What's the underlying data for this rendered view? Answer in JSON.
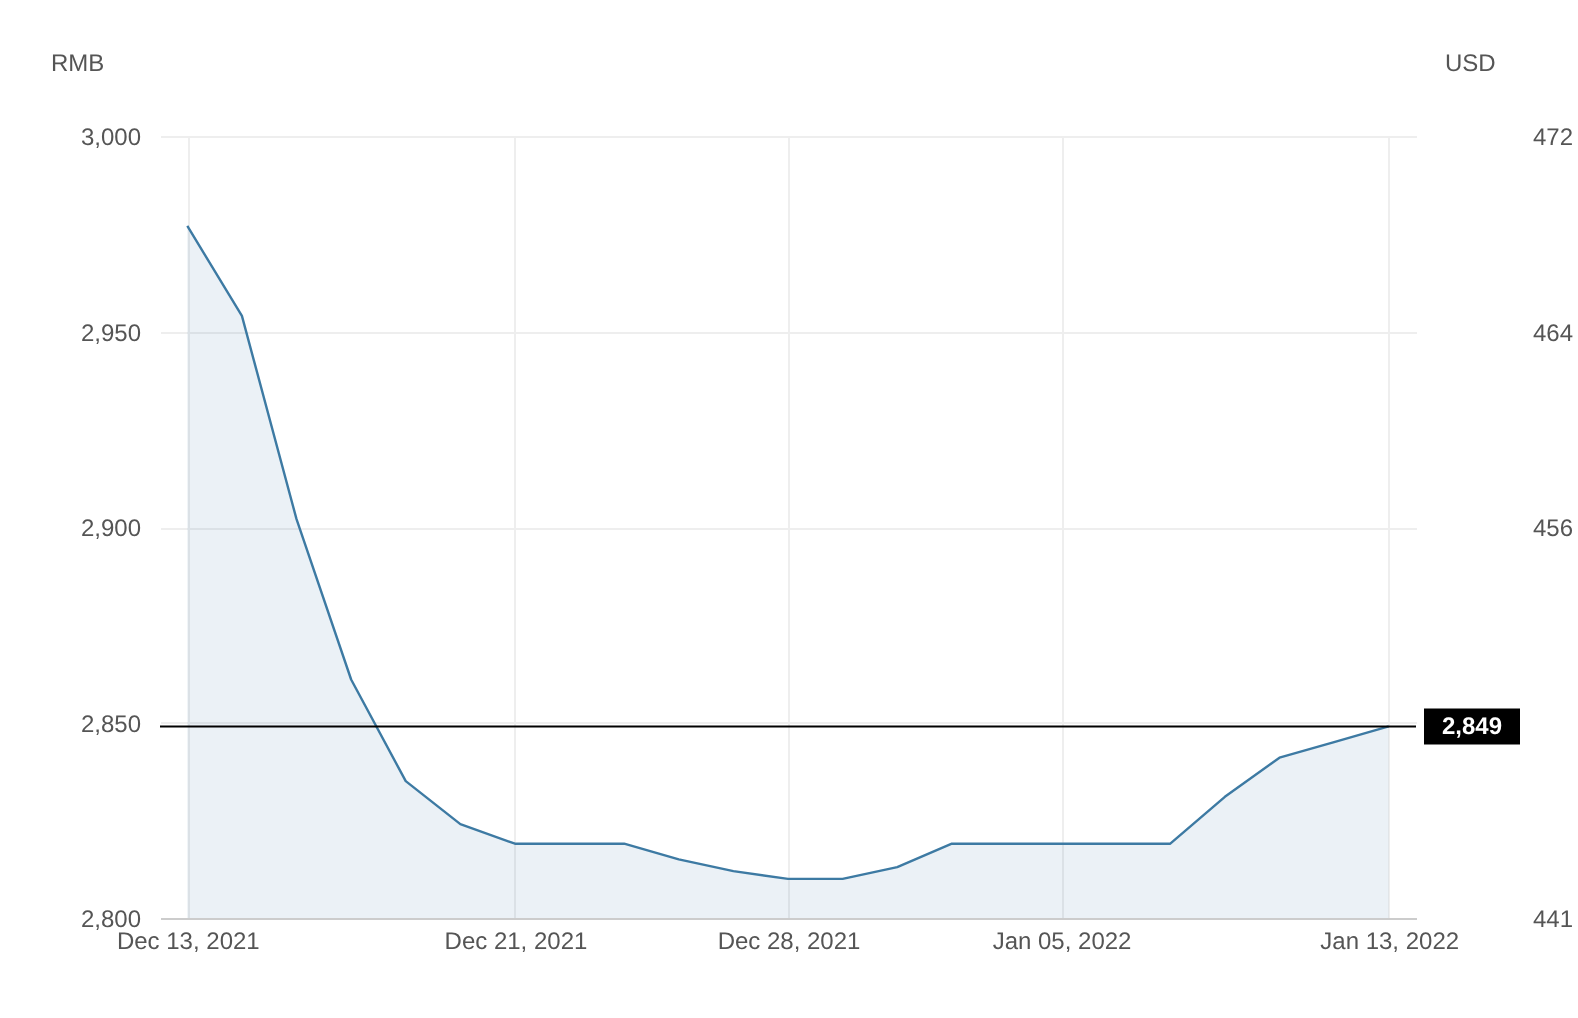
{
  "chart_data": {
    "type": "area",
    "ylabel": "RMB",
    "y2label": "USD",
    "categories": [
      "Dec 13, 2021",
      null,
      null,
      null,
      null,
      null,
      "Dec 21, 2021",
      null,
      null,
      null,
      null,
      "Dec 28, 2021",
      null,
      null,
      null,
      null,
      "Jan 05, 2022",
      null,
      null,
      null,
      null,
      null,
      "Jan 13, 2022"
    ],
    "series": [
      {
        "color": "#3d7aa3",
        "values": [
          2977,
          2954,
          2902,
          2861,
          2835,
          2824,
          2819,
          2819,
          2819,
          2815,
          2812,
          2810,
          2810,
          2813,
          2819,
          2819,
          2819,
          2819,
          2819,
          2831,
          2841,
          2845,
          2849
        ]
      }
    ],
    "ylim": [
      2800,
      3000
    ],
    "yticks": [
      {
        "value": 2800,
        "label": "2,800"
      },
      {
        "value": 2850,
        "label": "2,850"
      },
      {
        "value": 2900,
        "label": "2,900"
      },
      {
        "value": 2950,
        "label": "2,950"
      },
      {
        "value": 3000,
        "label": "3,000"
      }
    ],
    "y2lim": [
      441,
      472
    ],
    "y2ticks": [
      441,
      {
        "value": 448.75,
        "label": null
      },
      {
        "value": 456.5,
        "label": "456"
      },
      {
        "value": 464.25,
        "label": "464"
      },
      472
    ],
    "ref_lines": [
      {
        "axis": "y",
        "value": 2849,
        "label": "2,849",
        "color": "#000000"
      }
    ],
    "grid": true,
    "marker": "none"
  }
}
